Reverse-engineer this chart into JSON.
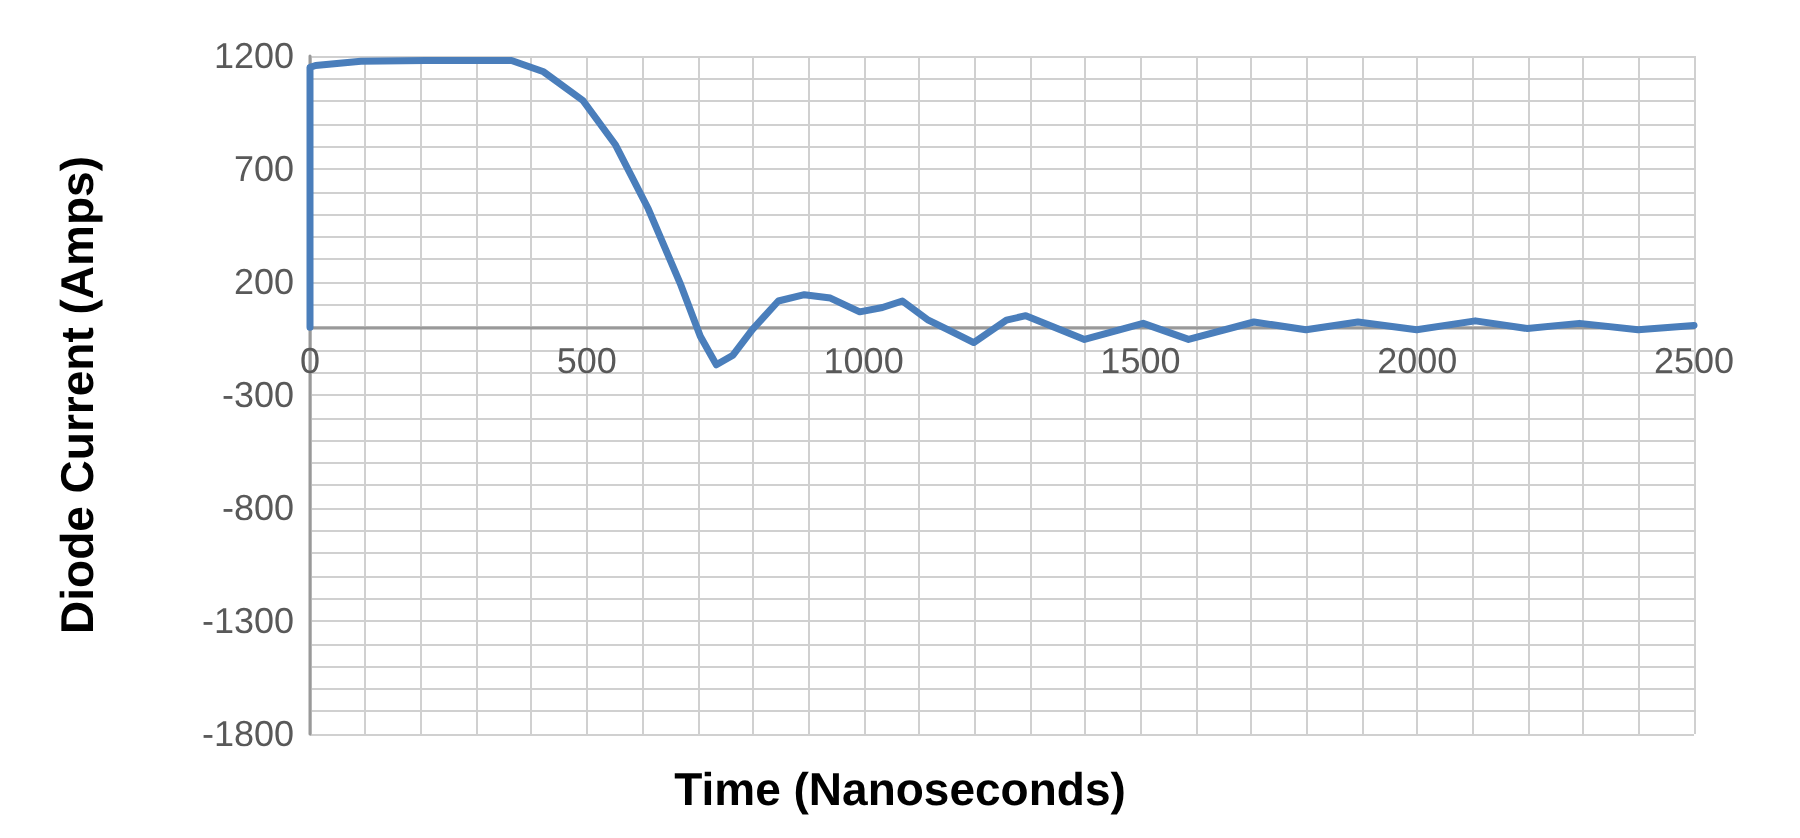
{
  "chart_data": {
    "type": "line",
    "xlabel": "Time (Nanoseconds)",
    "ylabel": "Diode Current (Amps)",
    "color": "#4a7ebb",
    "grid": true,
    "marker": "none",
    "line_style": "solid",
    "x": [
      0,
      0,
      10,
      92,
      209,
      364,
      422,
      493,
      552,
      611,
      670,
      705,
      734,
      764,
      799,
      846,
      893,
      940,
      993,
      1034,
      1070,
      1117,
      1152,
      1199,
      1258,
      1293,
      1399,
      1505,
      1587,
      1705,
      1799,
      1893,
      1999,
      2105,
      2199,
      2293,
      2399,
      2500
    ],
    "values": [
      0,
      1150,
      1158,
      1177,
      1180,
      1180,
      1130,
      1003,
      806,
      524,
      186,
      -40,
      -166,
      -124,
      -11,
      116,
      144,
      129,
      68,
      87,
      116,
      31,
      -11,
      -68,
      31,
      51,
      -54,
      17,
      -54,
      23,
      -11,
      23,
      -11,
      28,
      -6,
      17,
      -11,
      8
    ],
    "xlim": [
      0,
      2500
    ],
    "xticks": [
      0,
      {
        "value": 100,
        "label": null
      },
      {
        "value": 200,
        "label": null
      },
      {
        "value": 300,
        "label": null
      },
      {
        "value": 400,
        "label": null
      },
      500,
      {
        "value": 600,
        "label": null
      },
      {
        "value": 700,
        "label": null
      },
      {
        "value": 800,
        "label": null
      },
      {
        "value": 900,
        "label": null
      },
      1000,
      {
        "value": 1100,
        "label": null
      },
      {
        "value": 1200,
        "label": null
      },
      {
        "value": 1300,
        "label": null
      },
      {
        "value": 1400,
        "label": null
      },
      1500,
      {
        "value": 1600,
        "label": null
      },
      {
        "value": 1700,
        "label": null
      },
      {
        "value": 1800,
        "label": null
      },
      {
        "value": 1900,
        "label": null
      },
      2000,
      {
        "value": 2100,
        "label": null
      },
      {
        "value": 2200,
        "label": null
      },
      {
        "value": 2300,
        "label": null
      },
      {
        "value": 2400,
        "label": null
      },
      2500
    ],
    "ylim": [
      -1800,
      1200
    ],
    "yticks": [
      -1800,
      {
        "value": -1700,
        "label": null
      },
      {
        "value": -1600,
        "label": null
      },
      {
        "value": -1500,
        "label": null
      },
      {
        "value": -1400,
        "label": null
      },
      -1300,
      {
        "value": -1200,
        "label": null
      },
      {
        "value": -1100,
        "label": null
      },
      {
        "value": -1000,
        "label": null
      },
      {
        "value": -900,
        "label": null
      },
      -800,
      {
        "value": -700,
        "label": null
      },
      {
        "value": -600,
        "label": null
      },
      {
        "value": -500,
        "label": null
      },
      {
        "value": -400,
        "label": null
      },
      -300,
      {
        "value": -200,
        "label": null
      },
      {
        "value": -100,
        "label": null
      },
      {
        "value": 0,
        "label": null
      },
      {
        "value": 100,
        "label": null
      },
      200,
      {
        "value": 300,
        "label": null
      },
      {
        "value": 400,
        "label": null
      },
      {
        "value": 500,
        "label": null
      },
      {
        "value": 600,
        "label": null
      },
      700,
      {
        "value": 800,
        "label": null
      },
      {
        "value": 900,
        "label": null
      },
      {
        "value": 1000,
        "label": null
      },
      {
        "value": 1100,
        "label": null
      },
      1200
    ]
  }
}
